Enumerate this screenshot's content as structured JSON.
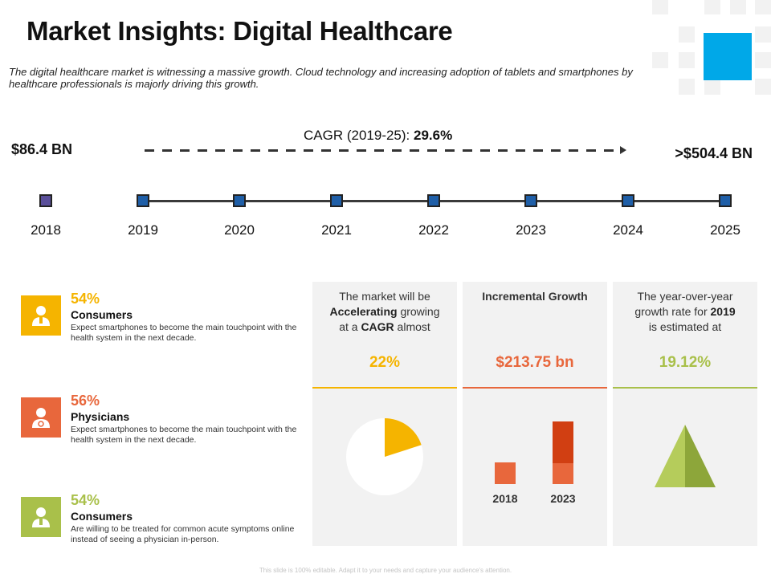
{
  "header": {
    "title": "Market Insights: Digital Healthcare",
    "subtitle": "The digital healthcare market is witnessing a massive growth. Cloud technology and increasing adoption of tablets and smartphones by healthcare professionals is majorly driving this growth."
  },
  "timeline": {
    "start_value": "$86.4 BN",
    "end_value": ">$504.4 BN",
    "cagr_label": "CAGR (2019-25):",
    "cagr_value": "29.6%",
    "years": [
      "2018",
      "2019",
      "2020",
      "2021",
      "2022",
      "2023",
      "2024",
      "2025"
    ]
  },
  "segments": [
    {
      "pct": "54%",
      "label": "Consumers",
      "desc": "Expect smartphones to become the main touchpoint with the health system in the next decade.",
      "color": "#f5b400",
      "icon": "consumer-icon"
    },
    {
      "pct": "56%",
      "label": "Physicians",
      "desc": "Expect smartphones to become the main touchpoint with the health system in the next decade.",
      "color": "#e8673c",
      "icon": "physician-icon"
    },
    {
      "pct": "54%",
      "label": "Consumers",
      "desc": "Are willing to be treated for common acute symptoms online instead of seeing a physician in-person.",
      "color": "#a9c04a",
      "icon": "consumer-icon"
    }
  ],
  "cards": {
    "card1": {
      "line1": "The market will be",
      "bold1": "Accelerating",
      "mid1": " growing",
      "line3_pre": "at a ",
      "bold2": "CAGR",
      "line3_post": " almost",
      "value": "22%",
      "color": "#f5b400",
      "pie_fraction": 0.22
    },
    "card2": {
      "heading": "Incremental Growth",
      "value": "$213.75 bn",
      "color": "#e8673c",
      "bar_labels": [
        "2018",
        "2023"
      ]
    },
    "card3": {
      "line1": "The year-over-year",
      "line2_pre": "growth rate for ",
      "bold": "2019",
      "line3": "is estimated at",
      "value": "19.12%",
      "color": "#a9c04a"
    }
  },
  "footer": "This slide is 100% editable. Adapt it to your needs and capture your audience's attention.",
  "colors": {
    "accent_blue": "#00a8e8",
    "node_blue": "#1f5fa8",
    "node_purple": "#5a4f9a"
  }
}
